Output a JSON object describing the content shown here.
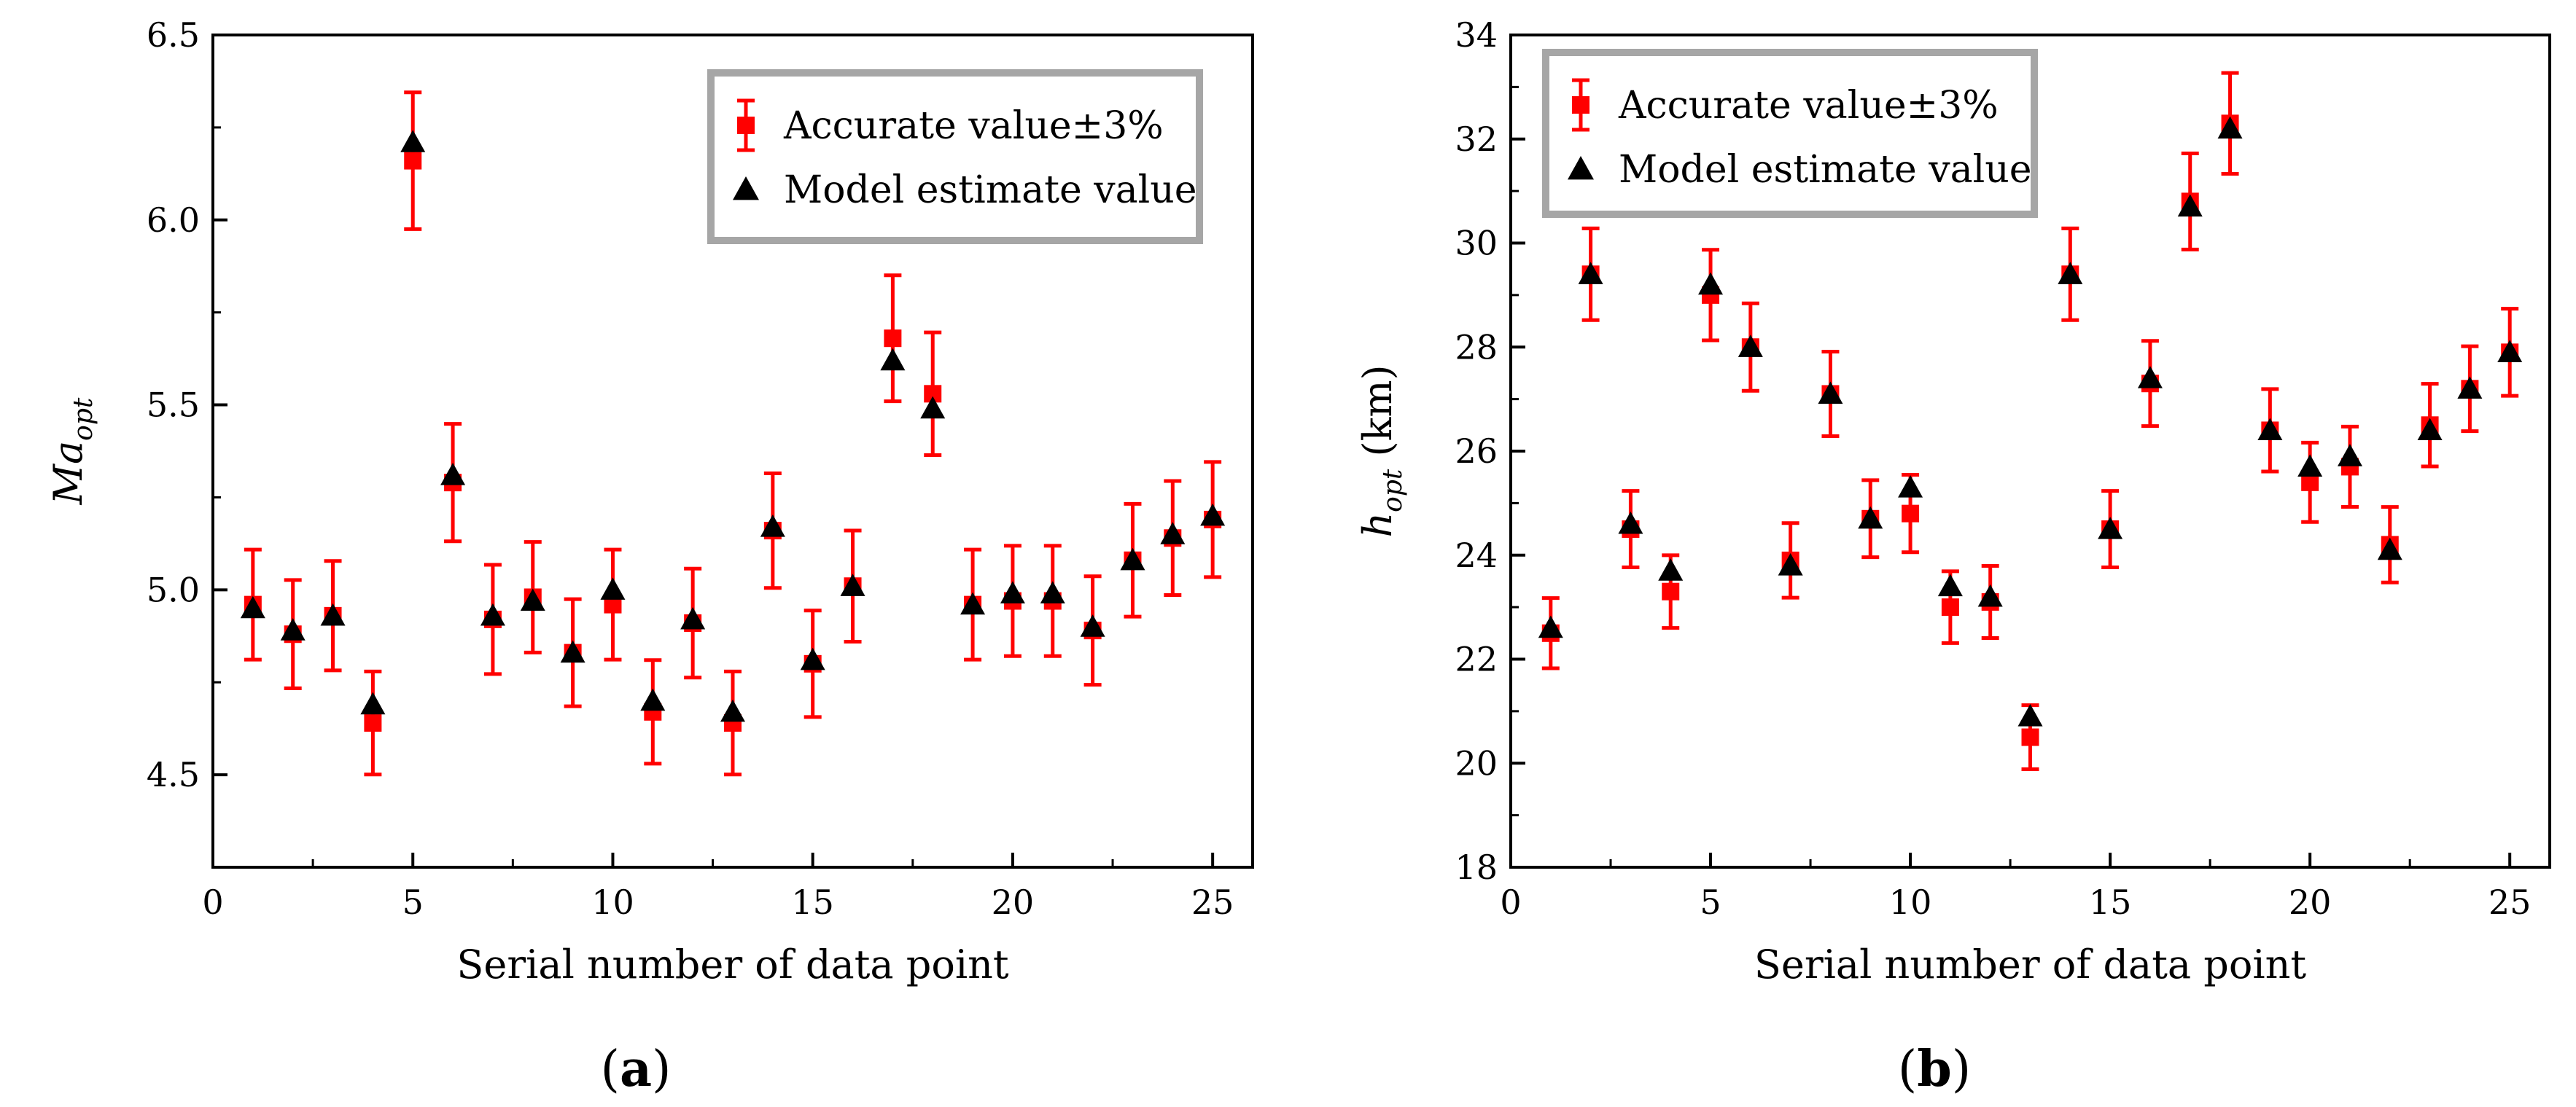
{
  "chart_data": [
    {
      "type": "scatter",
      "panel_label_open": "(",
      "panel_label_letter": "a",
      "panel_label_close": ")",
      "ylabel_main": "Ma",
      "ylabel_sub": "opt",
      "ylabel_unit": "",
      "xlabel": "Serial number of data point",
      "xlim": [
        0,
        26
      ],
      "ylim": [
        4.25,
        6.5
      ],
      "xticks": [
        0,
        5,
        10,
        15,
        20,
        25
      ],
      "yticks": [
        4.5,
        5.0,
        5.5,
        6.0,
        6.5
      ],
      "ytick_labels": [
        "4.5",
        "5.0",
        "5.5",
        "6.0",
        "6.5"
      ],
      "legend_position": "top-right",
      "series": [
        {
          "name": "Accurate value±3%",
          "marker": "square",
          "color": "#ff0000",
          "error_percent": 3,
          "x": [
            1,
            2,
            3,
            4,
            5,
            6,
            7,
            8,
            9,
            10,
            11,
            12,
            13,
            14,
            15,
            16,
            17,
            18,
            19,
            20,
            21,
            22,
            23,
            24,
            25
          ],
          "y": [
            4.96,
            4.88,
            4.93,
            4.64,
            6.16,
            5.29,
            4.92,
            4.98,
            4.83,
            4.96,
            4.67,
            4.91,
            4.64,
            5.16,
            4.8,
            5.01,
            5.68,
            5.53,
            4.96,
            4.97,
            4.97,
            4.89,
            5.08,
            5.14,
            5.19
          ]
        },
        {
          "name": "Model estimate value",
          "marker": "triangle",
          "color": "#000000",
          "x": [
            1,
            2,
            3,
            4,
            5,
            6,
            7,
            8,
            9,
            10,
            11,
            12,
            13,
            14,
            15,
            16,
            17,
            18,
            19,
            20,
            21,
            22,
            23,
            24,
            25
          ],
          "y": [
            4.95,
            4.89,
            4.93,
            4.69,
            6.21,
            5.31,
            4.93,
            4.97,
            4.83,
            5.0,
            4.7,
            4.92,
            4.67,
            5.17,
            4.81,
            5.01,
            5.62,
            5.49,
            4.96,
            4.99,
            4.99,
            4.9,
            5.08,
            5.15,
            5.2
          ]
        }
      ]
    },
    {
      "type": "scatter",
      "panel_label_open": "(",
      "panel_label_letter": "b",
      "panel_label_close": ")",
      "ylabel_main": "h",
      "ylabel_sub": "opt",
      "ylabel_unit": " (km)",
      "xlabel": "Serial number of data point",
      "xlim": [
        0,
        26
      ],
      "ylim": [
        18,
        34
      ],
      "xticks": [
        0,
        5,
        10,
        15,
        20,
        25
      ],
      "yticks": [
        18,
        20,
        22,
        24,
        26,
        28,
        30,
        32,
        34
      ],
      "ytick_labels": [
        "18",
        "20",
        "22",
        "24",
        "26",
        "28",
        "30",
        "32",
        "34"
      ],
      "legend_position": "top-left",
      "series": [
        {
          "name": "Accurate value±3%",
          "marker": "square",
          "color": "#ff0000",
          "error_percent": 3,
          "x": [
            1,
            2,
            3,
            4,
            5,
            6,
            7,
            8,
            9,
            10,
            11,
            12,
            13,
            14,
            15,
            16,
            17,
            18,
            19,
            20,
            21,
            22,
            23,
            24,
            25
          ],
          "y": [
            22.5,
            29.4,
            24.5,
            23.3,
            29.0,
            28.0,
            23.9,
            27.1,
            24.7,
            24.8,
            23.0,
            23.1,
            20.5,
            29.4,
            24.5,
            27.3,
            30.8,
            32.3,
            26.4,
            25.4,
            25.7,
            24.2,
            26.5,
            27.2,
            27.9
          ]
        },
        {
          "name": "Model estimate value",
          "marker": "triangle",
          "color": "#000000",
          "x": [
            1,
            2,
            3,
            4,
            5,
            6,
            7,
            8,
            9,
            10,
            11,
            12,
            13,
            14,
            15,
            16,
            17,
            18,
            19,
            20,
            21,
            22,
            23,
            24,
            25
          ],
          "y": [
            22.6,
            29.4,
            24.6,
            23.7,
            29.2,
            28.0,
            23.8,
            27.1,
            24.7,
            25.3,
            23.4,
            23.2,
            20.9,
            29.4,
            24.5,
            27.4,
            30.7,
            32.2,
            26.4,
            25.7,
            25.9,
            24.1,
            26.4,
            27.2,
            27.9
          ]
        }
      ]
    }
  ]
}
